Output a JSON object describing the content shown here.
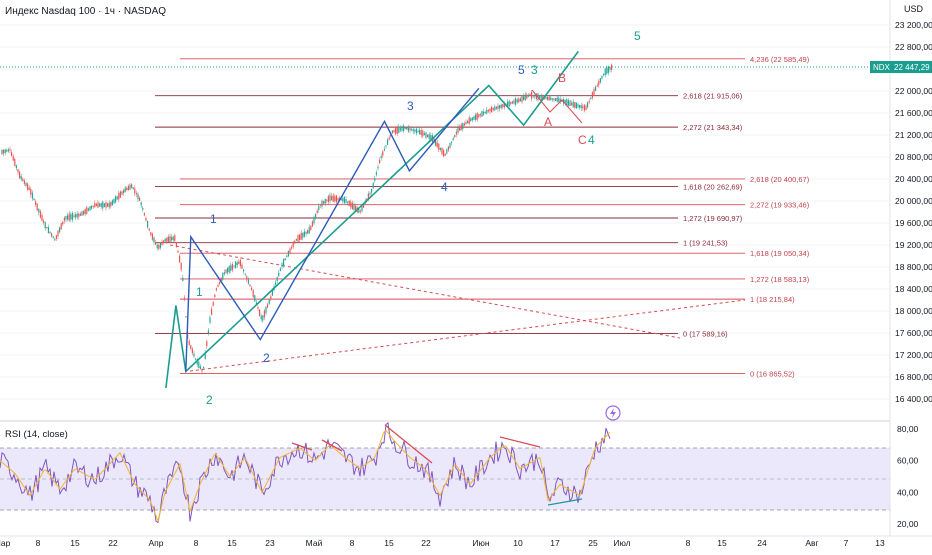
{
  "header": {
    "title": "Индекс Nasdaq 100 · 1ч · NASDAQ",
    "currency": "USD",
    "ticker_badge": "NDX",
    "last_price": "22 447,29"
  },
  "chart_data": {
    "type": "candlestick",
    "symbol": "NDX",
    "timeframe": "1h",
    "y_axis": {
      "min": 16200,
      "max": 23200,
      "ticks": [
        "23 200,00",
        "22 800,00",
        "22 400,00",
        "22 000,00",
        "21 600,00",
        "21 200,00",
        "20 800,00",
        "20 400,00",
        "20 000,00",
        "19 600,00",
        "19 200,00",
        "18 800,00",
        "18 400,00",
        "18 000,00",
        "17 600,00",
        "17 200,00",
        "16 800,00",
        "16 400,00"
      ]
    },
    "x_axis": {
      "ticks": [
        "Мар",
        "8",
        "15",
        "22",
        "Апр",
        "8",
        "15",
        "23",
        "Май",
        "8",
        "15",
        "22",
        "Июн",
        "10",
        "17",
        "25",
        "Июл",
        "8",
        "15",
        "24",
        "Авг",
        "7",
        "13"
      ]
    },
    "fib_levels_right": [
      {
        "label": "4,236 (22 585,49)",
        "price": 22585.49
      },
      {
        "label": "2,618 (20 400,67)",
        "price": 20400.67
      },
      {
        "label": "2,272 (19 933,46)",
        "price": 19933.46
      },
      {
        "label": "1,618 (19 050,34)",
        "price": 19050.34
      },
      {
        "label": "1,272 (18 583,13)",
        "price": 18583.13
      },
      {
        "label": "1 (18 215,84)",
        "price": 18215.84
      },
      {
        "label": "0 (16 865,52)",
        "price": 16865.52
      }
    ],
    "fib_levels_left": [
      {
        "label": "2,618 (21 915,06)",
        "price": 21915.06
      },
      {
        "label": "2,272 (21 343,34)",
        "price": 21343.34
      },
      {
        "label": "1,618 (20 262,69)",
        "price": 20262.69
      },
      {
        "label": "1,272 (19 690,97)",
        "price": 19690.97
      },
      {
        "label": "1 (19 241,53)",
        "price": 19241.53
      },
      {
        "label": "0 (17 589,16)",
        "price": 17589.16
      }
    ],
    "wave_labels": {
      "green": [
        "1",
        "2",
        "3",
        "4",
        "5"
      ],
      "blue": [
        "1",
        "2",
        "3",
        "4",
        "5"
      ],
      "red": [
        "A",
        "B",
        "C"
      ]
    },
    "green_wave": [
      {
        "d": "2024-04-03",
        "p": 16600
      },
      {
        "d": "2024-04-05",
        "p": 18100
      },
      {
        "d": "2024-04-07",
        "p": 16900
      },
      {
        "d": "2024-06-07",
        "p": 22100
      },
      {
        "d": "2024-06-14",
        "p": 21380
      },
      {
        "d": "2024-06-25",
        "p": 22720
      }
    ],
    "blue_wave": [
      {
        "d": "2024-04-07",
        "p": 16900
      },
      {
        "d": "2024-04-08",
        "p": 19350
      },
      {
        "d": "2024-04-22",
        "p": 17480
      },
      {
        "d": "2024-05-17",
        "p": 21450
      },
      {
        "d": "2024-05-22",
        "p": 20550
      },
      {
        "d": "2024-06-05",
        "p": 22050
      }
    ],
    "rsi": {
      "title": "RSI (14, close)",
      "ticks": [
        "80,00",
        "60,00",
        "40,00",
        "20,00"
      ],
      "levels": [
        70,
        50,
        30
      ]
    }
  }
}
